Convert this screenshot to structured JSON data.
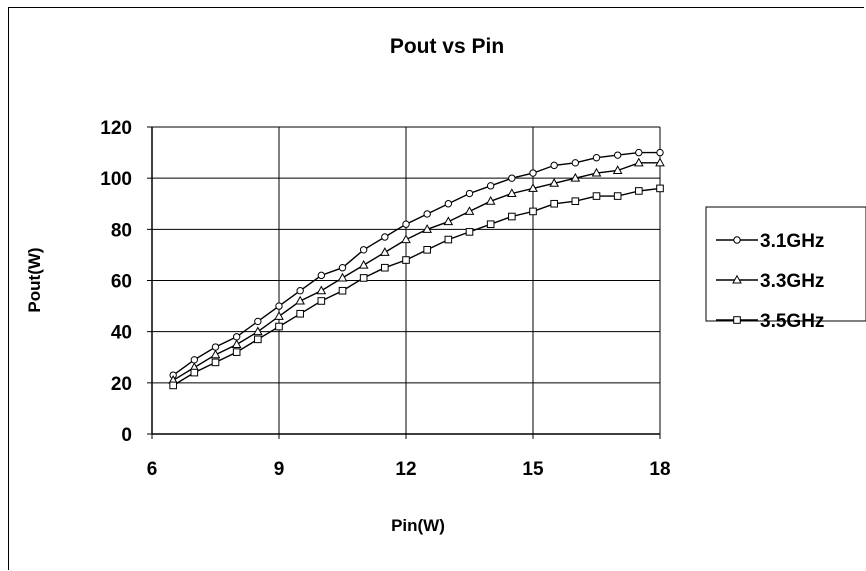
{
  "chart_data": {
    "type": "line",
    "title": "Pout vs Pin",
    "xlabel": "Pin(W)",
    "ylabel": "Pout(W)",
    "xlim": [
      6,
      18
    ],
    "ylim": [
      0,
      120
    ],
    "x_ticks": [
      6,
      9,
      12,
      15,
      18
    ],
    "y_ticks": [
      0,
      20,
      40,
      60,
      80,
      100,
      120
    ],
    "grid": true,
    "legend_position": "right",
    "series": [
      {
        "name": "3.1GHz",
        "marker": "circle",
        "x": [
          6.5,
          7.0,
          7.5,
          8.0,
          8.5,
          9.0,
          9.5,
          10.0,
          10.5,
          11.0,
          11.5,
          12.0,
          12.5,
          13.0,
          13.5,
          14.0,
          14.5,
          15.0,
          15.5,
          16.0,
          16.5,
          17.0,
          17.5,
          18.0
        ],
        "y": [
          23,
          29,
          34,
          38,
          44,
          50,
          56,
          62,
          65,
          72,
          77,
          82,
          86,
          90,
          94,
          97,
          100,
          102,
          105,
          106,
          108,
          109,
          110,
          110
        ]
      },
      {
        "name": "3.3GHz",
        "marker": "triangle",
        "x": [
          6.5,
          7.0,
          7.5,
          8.0,
          8.5,
          9.0,
          9.5,
          10.0,
          10.5,
          11.0,
          11.5,
          12.0,
          12.5,
          13.0,
          13.5,
          14.0,
          14.5,
          15.0,
          15.5,
          16.0,
          16.5,
          17.0,
          17.5,
          18.0
        ],
        "y": [
          21,
          26,
          31,
          35,
          40,
          46,
          52,
          56,
          61,
          66,
          71,
          76,
          80,
          83,
          87,
          91,
          94,
          96,
          98,
          100,
          102,
          103,
          106,
          106
        ]
      },
      {
        "name": "3.5GHz",
        "marker": "square",
        "x": [
          6.5,
          7.0,
          7.5,
          8.0,
          8.5,
          9.0,
          9.5,
          10.0,
          10.5,
          11.0,
          11.5,
          12.0,
          12.5,
          13.0,
          13.5,
          14.0,
          14.5,
          15.0,
          15.5,
          16.0,
          16.5,
          17.0,
          17.5,
          18.0
        ],
        "y": [
          19,
          24,
          28,
          32,
          37,
          42,
          47,
          52,
          56,
          61,
          65,
          68,
          72,
          76,
          79,
          82,
          85,
          87,
          90,
          91,
          93,
          93,
          95,
          96
        ]
      }
    ]
  }
}
